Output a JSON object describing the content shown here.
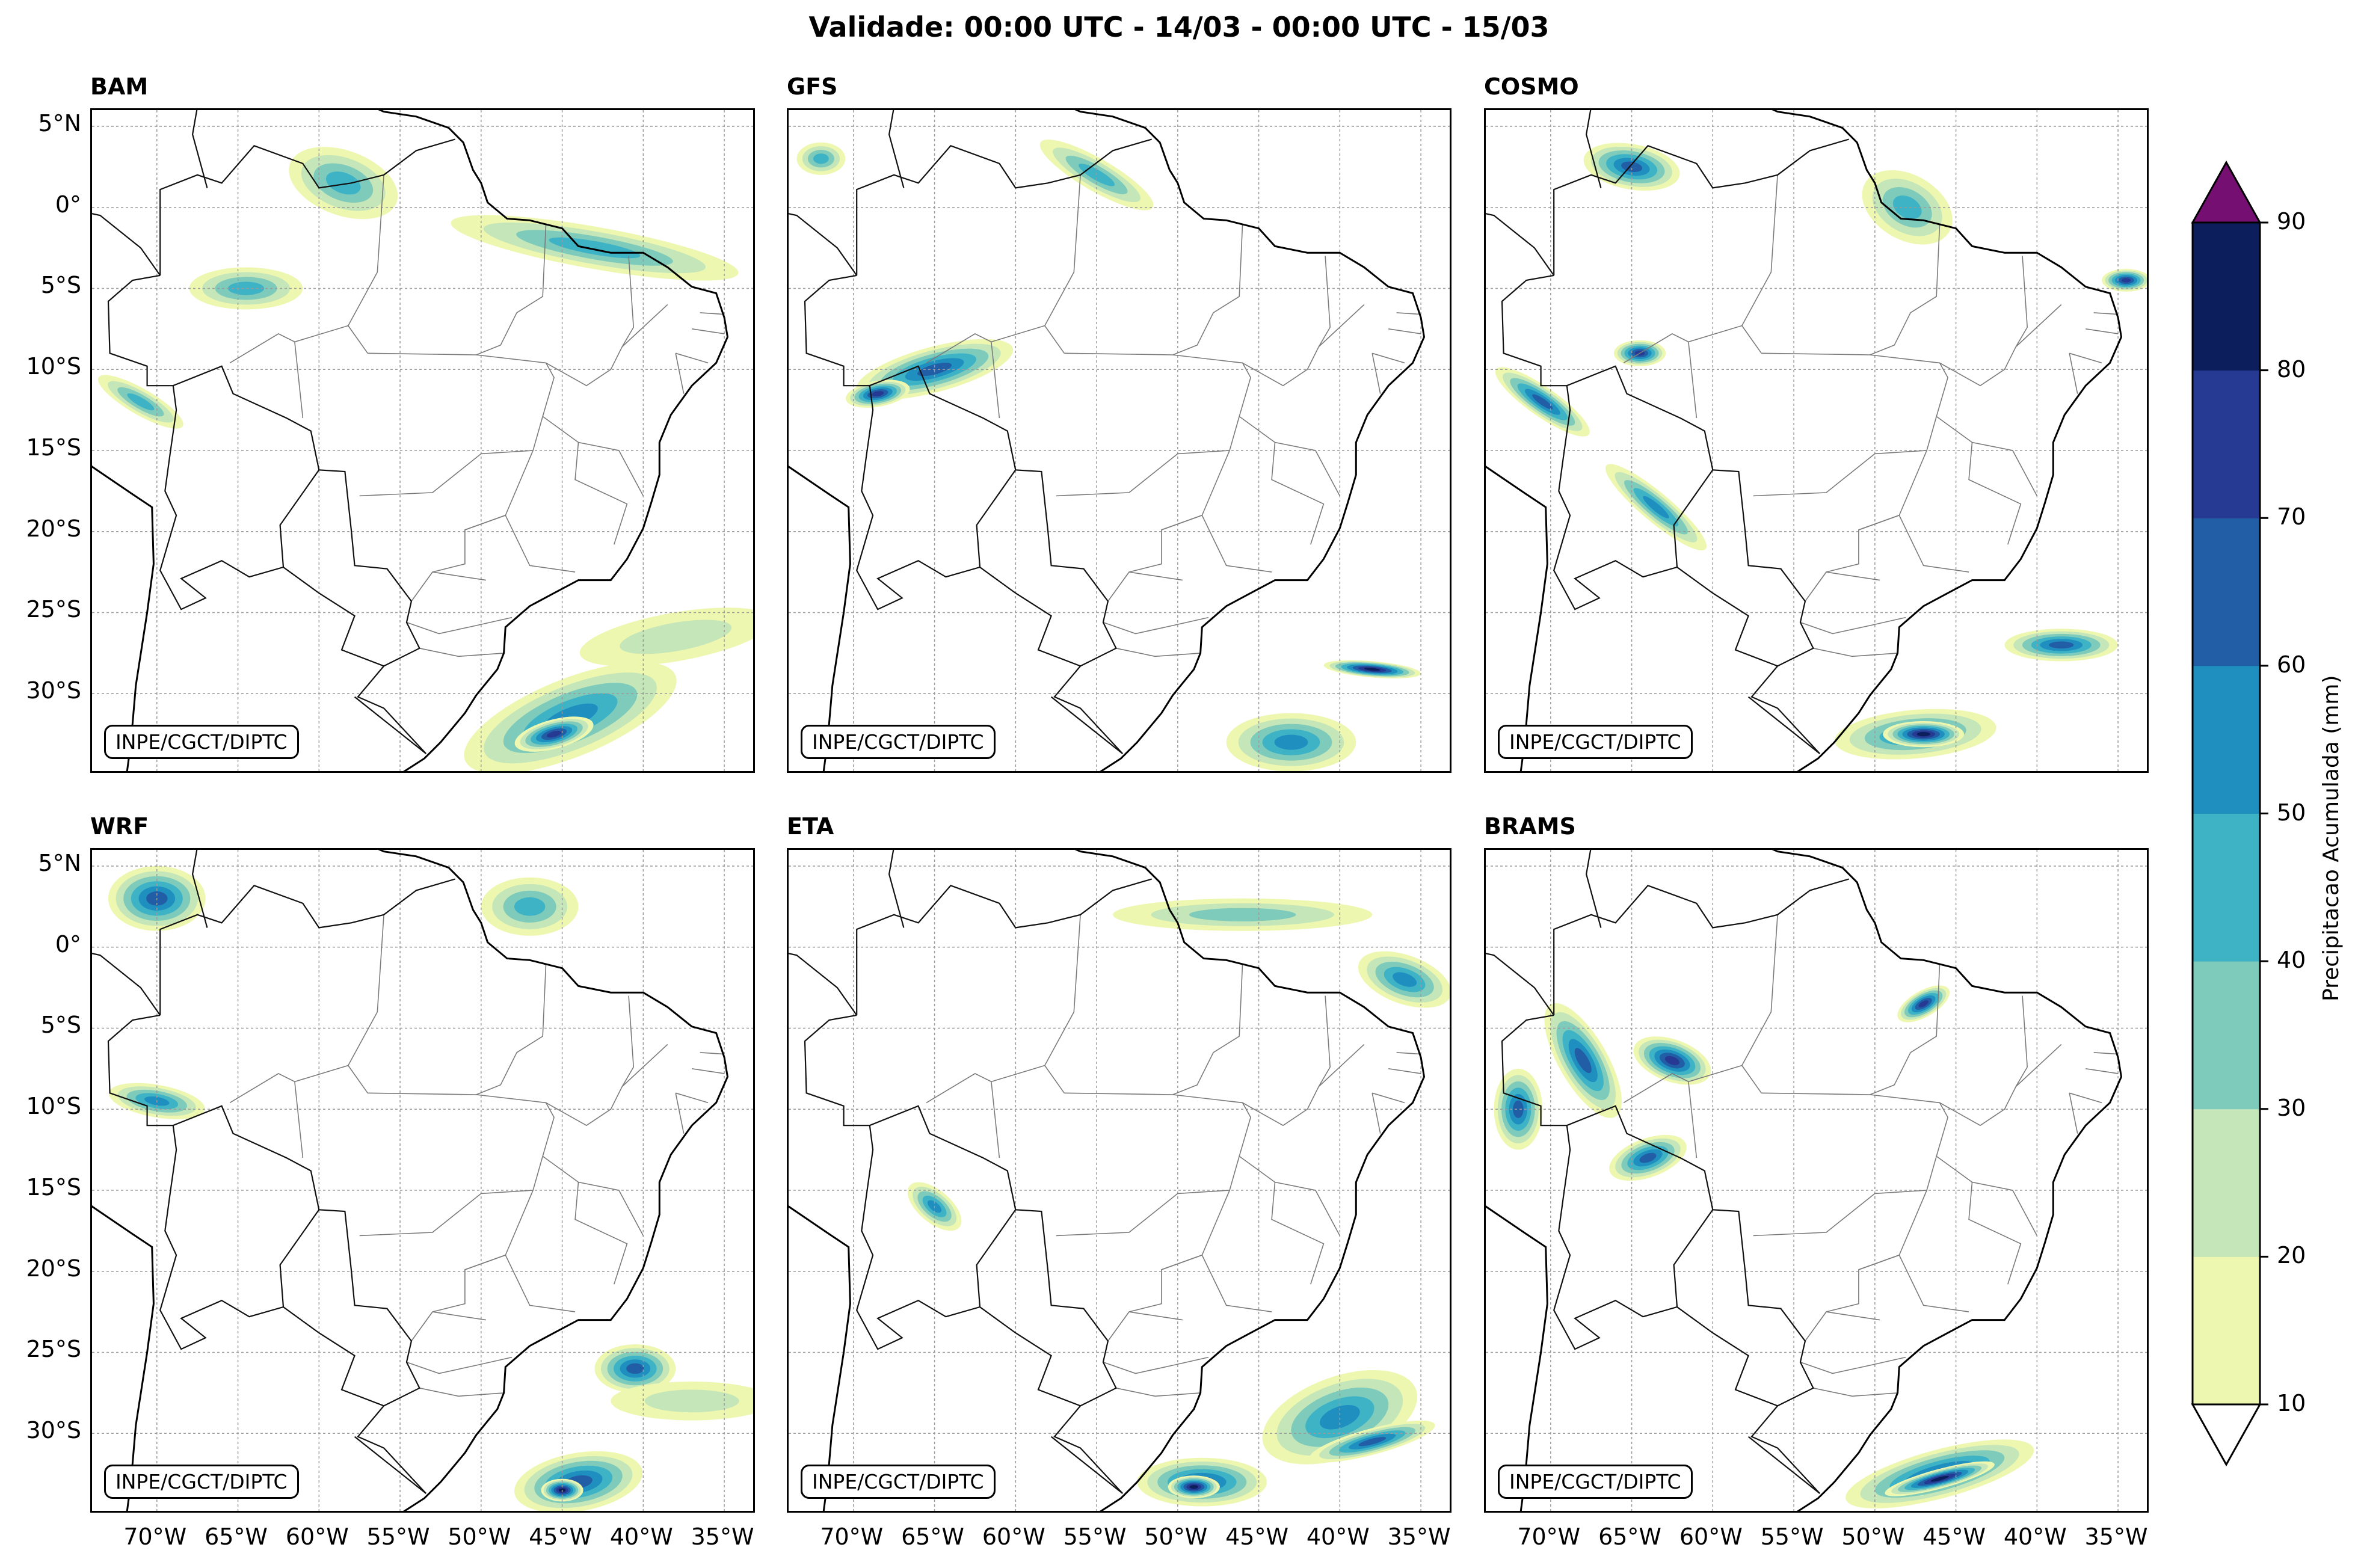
{
  "figure": {
    "title": "Validade: 00:00 UTC - 14/03 - 00:00 UTC - 15/03",
    "credit": "INPE/CGCT/DIPTC"
  },
  "axes": {
    "lat_ticks": [
      "5°N",
      "0°",
      "5°S",
      "10°S",
      "15°S",
      "20°S",
      "25°S",
      "30°S"
    ],
    "lat_values": [
      5,
      0,
      -5,
      -10,
      -15,
      -20,
      -25,
      -30
    ],
    "lon_ticks": [
      "70°W",
      "65°W",
      "60°W",
      "55°W",
      "50°W",
      "45°W",
      "40°W",
      "35°W"
    ],
    "lon_values": [
      -70,
      -65,
      -60,
      -55,
      -50,
      -45,
      -40,
      -35
    ],
    "extent": {
      "lon_min": -74,
      "lon_max": -33,
      "lat_min": -35,
      "lat_max": 6
    }
  },
  "panels": [
    {
      "id": "bam",
      "name": "BAM",
      "blobs": [
        {
          "lon": -44.5,
          "lat": -31.5,
          "rx": 7,
          "ry": 2.4,
          "rot": -22,
          "level": 4
        },
        {
          "lon": -45.5,
          "lat": -32.5,
          "rx": 2.5,
          "ry": 0.9,
          "rot": -15,
          "level": 6
        },
        {
          "lon": -43,
          "lat": -2.5,
          "rx": 9,
          "ry": 1.3,
          "rot": 10,
          "level": 3
        },
        {
          "lon": -64.5,
          "lat": -5,
          "rx": 3.5,
          "ry": 1.3,
          "rot": 0,
          "level": 3
        },
        {
          "lon": -58.5,
          "lat": 1.5,
          "rx": 3.5,
          "ry": 2,
          "rot": 20,
          "level": 3
        },
        {
          "lon": -71,
          "lat": -12,
          "rx": 3,
          "ry": 0.8,
          "rot": 30,
          "level": 3
        },
        {
          "lon": -38,
          "lat": -26.5,
          "rx": 6,
          "ry": 1.5,
          "rot": -10,
          "level": 1
        }
      ]
    },
    {
      "id": "gfs",
      "name": "GFS",
      "blobs": [
        {
          "lon": -38,
          "lat": -28.5,
          "rx": 3,
          "ry": 0.5,
          "rot": 5,
          "level": 7
        },
        {
          "lon": -43,
          "lat": -33,
          "rx": 4,
          "ry": 1.8,
          "rot": 0,
          "level": 4
        },
        {
          "lon": -65,
          "lat": -10,
          "rx": 5,
          "ry": 1.4,
          "rot": -15,
          "level": 5
        },
        {
          "lon": -68.5,
          "lat": -11.5,
          "rx": 2,
          "ry": 0.8,
          "rot": -10,
          "level": 6
        },
        {
          "lon": -55,
          "lat": 2,
          "rx": 4,
          "ry": 1,
          "rot": 30,
          "level": 3
        },
        {
          "lon": -72,
          "lat": 3,
          "rx": 1.5,
          "ry": 1,
          "rot": 0,
          "level": 3
        }
      ]
    },
    {
      "id": "cosmo",
      "name": "COSMO",
      "blobs": [
        {
          "lon": -47.5,
          "lat": -32.5,
          "rx": 5,
          "ry": 1.5,
          "rot": -5,
          "level": 4
        },
        {
          "lon": -47,
          "lat": -32.5,
          "rx": 2.5,
          "ry": 0.8,
          "rot": 0,
          "level": 7
        },
        {
          "lon": -38.5,
          "lat": -27,
          "rx": 3.5,
          "ry": 1,
          "rot": 0,
          "level": 5
        },
        {
          "lon": -34.5,
          "lat": -4.5,
          "rx": 1.5,
          "ry": 0.7,
          "rot": 0,
          "level": 6
        },
        {
          "lon": -65,
          "lat": 2.5,
          "rx": 3,
          "ry": 1.4,
          "rot": 10,
          "level": 5
        },
        {
          "lon": -64.5,
          "lat": -9,
          "rx": 1.6,
          "ry": 0.8,
          "rot": 0,
          "level": 6
        },
        {
          "lon": -70.5,
          "lat": -12,
          "rx": 3.5,
          "ry": 0.9,
          "rot": 35,
          "level": 5
        },
        {
          "lon": -63.5,
          "lat": -18.5,
          "rx": 4,
          "ry": 0.9,
          "rot": 40,
          "level": 4
        },
        {
          "lon": -48,
          "lat": 0,
          "rx": 3,
          "ry": 2,
          "rot": 30,
          "level": 3
        }
      ]
    },
    {
      "id": "wrf",
      "name": "WRF",
      "blobs": [
        {
          "lon": -44,
          "lat": -33,
          "rx": 4,
          "ry": 1.8,
          "rot": -10,
          "level": 5
        },
        {
          "lon": -45,
          "lat": -33.5,
          "rx": 1.3,
          "ry": 0.7,
          "rot": 0,
          "level": 7
        },
        {
          "lon": -40.5,
          "lat": -26,
          "rx": 2.5,
          "ry": 1.5,
          "rot": 0,
          "level": 5
        },
        {
          "lon": -47,
          "lat": 2.5,
          "rx": 3,
          "ry": 1.8,
          "rot": 0,
          "level": 3
        },
        {
          "lon": -70,
          "lat": 3,
          "rx": 3,
          "ry": 2,
          "rot": 0,
          "level": 5
        },
        {
          "lon": -70,
          "lat": -9.5,
          "rx": 3,
          "ry": 1,
          "rot": 10,
          "level": 4
        },
        {
          "lon": -37,
          "lat": -28,
          "rx": 5,
          "ry": 1.2,
          "rot": 0,
          "level": 1
        }
      ]
    },
    {
      "id": "eta",
      "name": "ETA",
      "blobs": [
        {
          "lon": -48.5,
          "lat": -33,
          "rx": 4,
          "ry": 1.5,
          "rot": 0,
          "level": 5
        },
        {
          "lon": -49,
          "lat": -33.3,
          "rx": 1.6,
          "ry": 0.7,
          "rot": 0,
          "level": 7
        },
        {
          "lon": -40,
          "lat": -29,
          "rx": 5,
          "ry": 2.5,
          "rot": -20,
          "level": 4
        },
        {
          "lon": -36,
          "lat": -2,
          "rx": 3,
          "ry": 1.5,
          "rot": 20,
          "level": 4
        },
        {
          "lon": -38,
          "lat": -30.5,
          "rx": 4,
          "ry": 0.8,
          "rot": -15,
          "level": 5
        },
        {
          "lon": -65,
          "lat": -16,
          "rx": 2,
          "ry": 1,
          "rot": 40,
          "level": 4
        },
        {
          "lon": -46,
          "lat": 2,
          "rx": 8,
          "ry": 1,
          "rot": 0,
          "level": 2
        }
      ]
    },
    {
      "id": "brams",
      "name": "BRAMS",
      "blobs": [
        {
          "lon": -46,
          "lat": -32.5,
          "rx": 6,
          "ry": 1.5,
          "rot": -15,
          "level": 5
        },
        {
          "lon": -46,
          "lat": -32.8,
          "rx": 3.5,
          "ry": 0.6,
          "rot": -15,
          "level": 7
        },
        {
          "lon": -68,
          "lat": -7,
          "rx": 4,
          "ry": 1.5,
          "rot": 60,
          "level": 5
        },
        {
          "lon": -62.5,
          "lat": -7,
          "rx": 2.5,
          "ry": 1.3,
          "rot": 20,
          "level": 6
        },
        {
          "lon": -64,
          "lat": -13,
          "rx": 2.5,
          "ry": 1.2,
          "rot": -20,
          "level": 5
        },
        {
          "lon": -47,
          "lat": -3.5,
          "rx": 1.8,
          "ry": 0.8,
          "rot": -30,
          "level": 6
        },
        {
          "lon": -72,
          "lat": -10,
          "rx": 1.5,
          "ry": 2.5,
          "rot": 0,
          "level": 5
        }
      ]
    }
  ],
  "colorbar": {
    "label": "Precipitacao Acumulada (mm)",
    "levels": [
      10,
      20,
      30,
      40,
      50,
      60,
      70,
      80,
      90
    ],
    "colors": [
      "#eef7b0",
      "#c5e6b8",
      "#7ecbbb",
      "#3fb3c6",
      "#1f8fc0",
      "#225ea6",
      "#263a93",
      "#0c1f5c"
    ],
    "over_color": "#750f72",
    "under_color": "#ffffff"
  },
  "colors": {
    "coastline": "#000000",
    "borders": "#7a7a7a",
    "gridlines": "#9a9a9a"
  }
}
